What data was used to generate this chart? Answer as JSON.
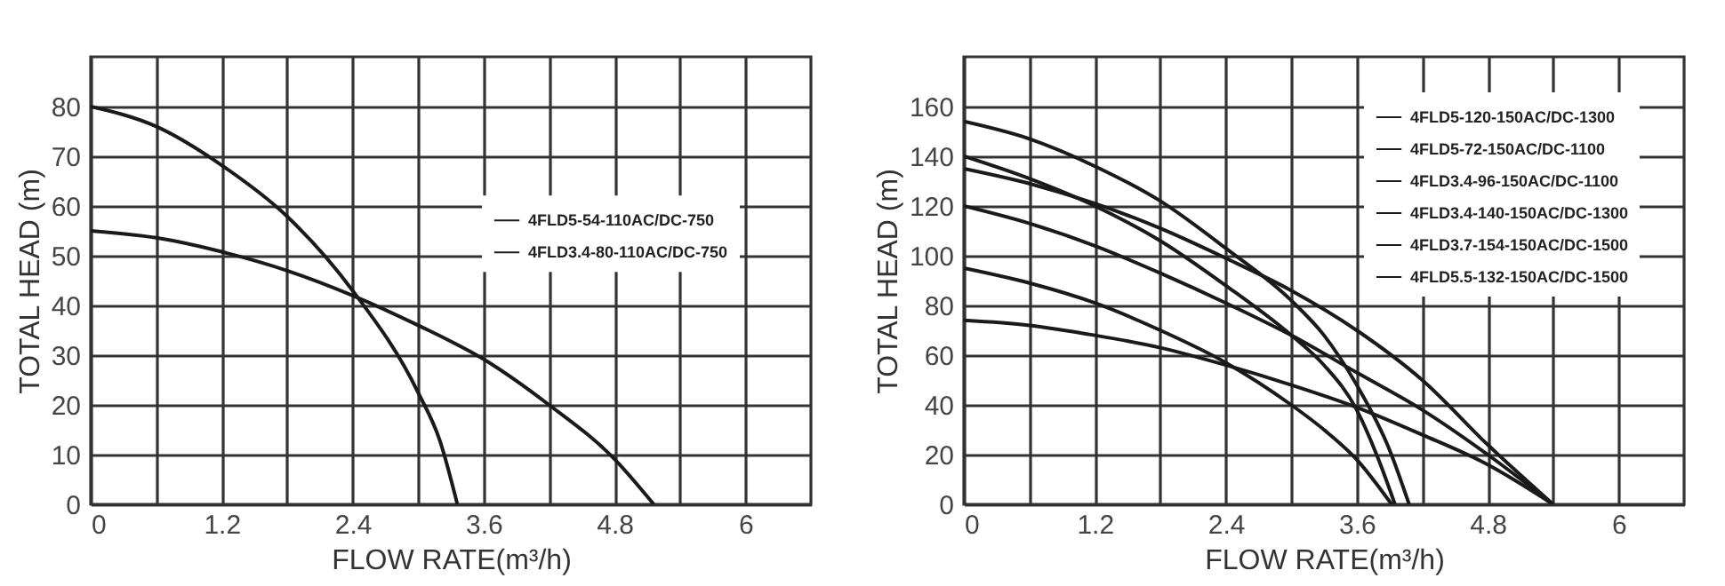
{
  "chart_data": [
    {
      "type": "line",
      "xlabel": "FLOW RATE(m³/h)",
      "ylabel": "TOTAL HEAD  (m)",
      "xlim": [
        0,
        6.6
      ],
      "ylim": [
        0,
        90
      ],
      "xticks": [
        0,
        {
          "value": 0.6,
          "label": null
        },
        1.2,
        {
          "value": 1.8,
          "label": null
        },
        2.4,
        {
          "value": 3.0,
          "label": null
        },
        3.6,
        {
          "value": 4.2,
          "label": null
        },
        4.8,
        {
          "value": 5.4,
          "label": null
        },
        6
      ],
      "yticks": [
        0,
        10,
        20,
        30,
        40,
        50,
        60,
        70,
        80
      ],
      "grid": true,
      "legend": "right",
      "line_style": "solid",
      "series": [
        {
          "name": "4FLD5-54-110AC/DC-750",
          "color": "#1a1a1a",
          "x": [
            0,
            0.6,
            1.2,
            1.8,
            2.4,
            3.0,
            3.6,
            4.2,
            4.8,
            5.16
          ],
          "values": [
            55,
            53.6,
            50.8,
            47,
            42,
            36,
            29.2,
            20,
            9.1,
            0
          ]
        },
        {
          "name": "4FLD3.4-80-110AC/DC-750",
          "color": "#1a1a1a",
          "x": [
            0,
            0.6,
            1.2,
            1.8,
            2.4,
            3.0,
            3.2,
            3.36
          ],
          "values": [
            80,
            76,
            68.2,
            57.9,
            43,
            22.5,
            12.8,
            0
          ]
        }
      ]
    },
    {
      "type": "line",
      "xlabel": "FLOW RATE(m³/h)",
      "ylabel": "TOTAL HEAD  (m)",
      "xlim": [
        0,
        6.6
      ],
      "ylim": [
        0,
        180
      ],
      "xticks": [
        0,
        {
          "value": 0.6,
          "label": null
        },
        1.2,
        {
          "value": 1.8,
          "label": null
        },
        2.4,
        {
          "value": 3.0,
          "label": null
        },
        3.6,
        {
          "value": 4.2,
          "label": null
        },
        4.8,
        {
          "value": 5.4,
          "label": null
        },
        6
      ],
      "yticks": [
        0,
        20,
        40,
        60,
        80,
        100,
        120,
        140,
        160
      ],
      "grid": true,
      "legend": "top right",
      "line_style": "solid",
      "series": [
        {
          "name": "4FLD5-120-150AC/DC-1300",
          "color": "#1a1a1a",
          "x": [
            0,
            0.6,
            1.2,
            1.8,
            2.4,
            3.0,
            3.6,
            4.2,
            4.8,
            5.4
          ],
          "values": [
            120,
            113,
            104,
            93,
            81,
            68,
            53,
            38,
            20,
            0
          ]
        },
        {
          "name": "4FLD5-72-150AC/DC-1100",
          "color": "#1a1a1a",
          "x": [
            0,
            0.6,
            1.2,
            1.8,
            2.4,
            3.0,
            3.6,
            4.2,
            4.8,
            5.4
          ],
          "values": [
            74,
            72,
            68,
            63,
            56,
            48,
            39,
            28,
            16,
            0
          ]
        },
        {
          "name": "4FLD3.4-96-150AC/DC-1100",
          "color": "#1a1a1a",
          "x": [
            0,
            0.6,
            1.2,
            1.8,
            2.4,
            3.0,
            3.3,
            3.6,
            3.92
          ],
          "values": [
            95,
            89,
            81,
            70,
            57,
            40,
            30,
            18,
            0
          ]
        },
        {
          "name": "4FLD3.4-140-150AC/DC-1300",
          "color": "#1a1a1a",
          "x": [
            0,
            0.6,
            1.2,
            1.8,
            2.4,
            3.0,
            3.3,
            3.6,
            3.8,
            3.95
          ],
          "values": [
            140,
            131,
            120,
            106,
            88,
            68,
            56,
            38,
            18,
            0
          ]
        },
        {
          "name": "4FLD3.7-154-150AC/DC-1500",
          "color": "#1a1a1a",
          "x": [
            0,
            0.6,
            1.2,
            1.8,
            2.4,
            3.0,
            3.3,
            3.6,
            3.9,
            4.08
          ],
          "values": [
            154,
            147,
            136,
            122,
            103,
            82,
            68,
            48,
            22,
            0
          ]
        },
        {
          "name": "4FLD5.5-132-150AC/DC-1500",
          "color": "#1a1a1a",
          "x": [
            0,
            0.6,
            1.2,
            1.8,
            2.4,
            3.0,
            3.6,
            4.2,
            4.8,
            5.4
          ],
          "values": [
            135,
            129,
            121,
            111,
            99,
            86,
            70,
            50,
            24,
            0
          ]
        }
      ]
    }
  ]
}
